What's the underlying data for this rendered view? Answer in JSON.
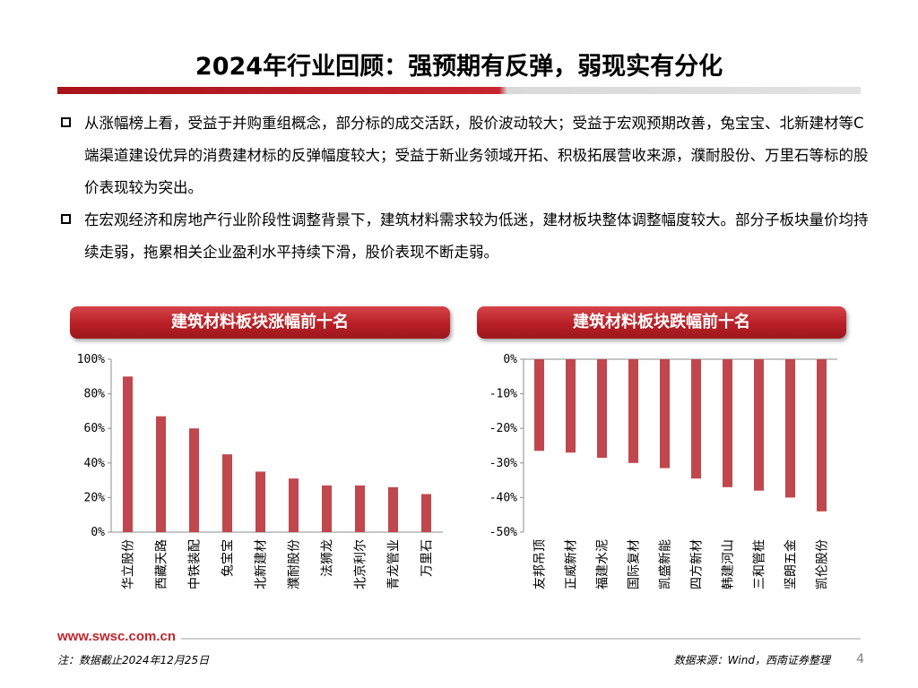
{
  "title": "2024年行业回顾：强预期有反弹，弱现实有分化",
  "colors": {
    "accent": "#c0262d",
    "bar": "#c0474d"
  },
  "bullets": [
    "从涨幅榜上看，受益于并购重组概念，部分标的成交活跃，股价波动较大；受益于宏观预期改善，兔宝宝、北新建材等C端渠道建设优异的消费建材标的反弹幅度较大；受益于新业务领域开拓、积极拓展营收来源，濮耐股份、万里石等标的股价表现较为突出。",
    "在宏观经济和房地产行业阶段性调整背景下，建筑材料需求较为低迷，建材板块整体调整幅度较大。部分子板块量价均持续走弱，拖累相关企业盈利水平持续下滑，股价表现不断走弱。"
  ],
  "chart_data": [
    {
      "type": "bar",
      "title": "建筑材料板块涨幅前十名",
      "categories": [
        "华立股份",
        "西藏天路",
        "中铁装配",
        "兔宝宝",
        "北新建材",
        "濮耐股份",
        "法狮龙",
        "北京利尔",
        "青龙管业",
        "万里石"
      ],
      "values": [
        90,
        67,
        60,
        45,
        35,
        31,
        27,
        27,
        26,
        22
      ],
      "ylim": [
        0,
        100
      ],
      "yticks": [
        0,
        20,
        40,
        60,
        80,
        100
      ],
      "ytick_labels": [
        "0%",
        "20%",
        "40%",
        "60%",
        "80%",
        "100%"
      ],
      "unit": "%"
    },
    {
      "type": "bar",
      "title": "建筑材料板块跌幅前十名",
      "categories": [
        "友邦吊顶",
        "正威新材",
        "福建水泥",
        "国际复材",
        "凯盛新能",
        "四方新材",
        "韩建河山",
        "三和管桩",
        "坚朗五金",
        "凯伦股份"
      ],
      "values": [
        -26.5,
        -27,
        -28.5,
        -30,
        -31.5,
        -34.5,
        -37,
        -38,
        -40,
        -44
      ],
      "ylim": [
        -50,
        0
      ],
      "yticks": [
        0,
        -10,
        -20,
        -30,
        -40,
        -50
      ],
      "ytick_labels": [
        "0%",
        "-10%",
        "-20%",
        "-30%",
        "-40%",
        "-50%"
      ],
      "unit": "%"
    }
  ],
  "footer": {
    "url": "www.swsc.com.cn",
    "note": "注：数据截止2024年12月25日",
    "source": "数据来源：Wind，西南证券整理",
    "page": "4"
  }
}
